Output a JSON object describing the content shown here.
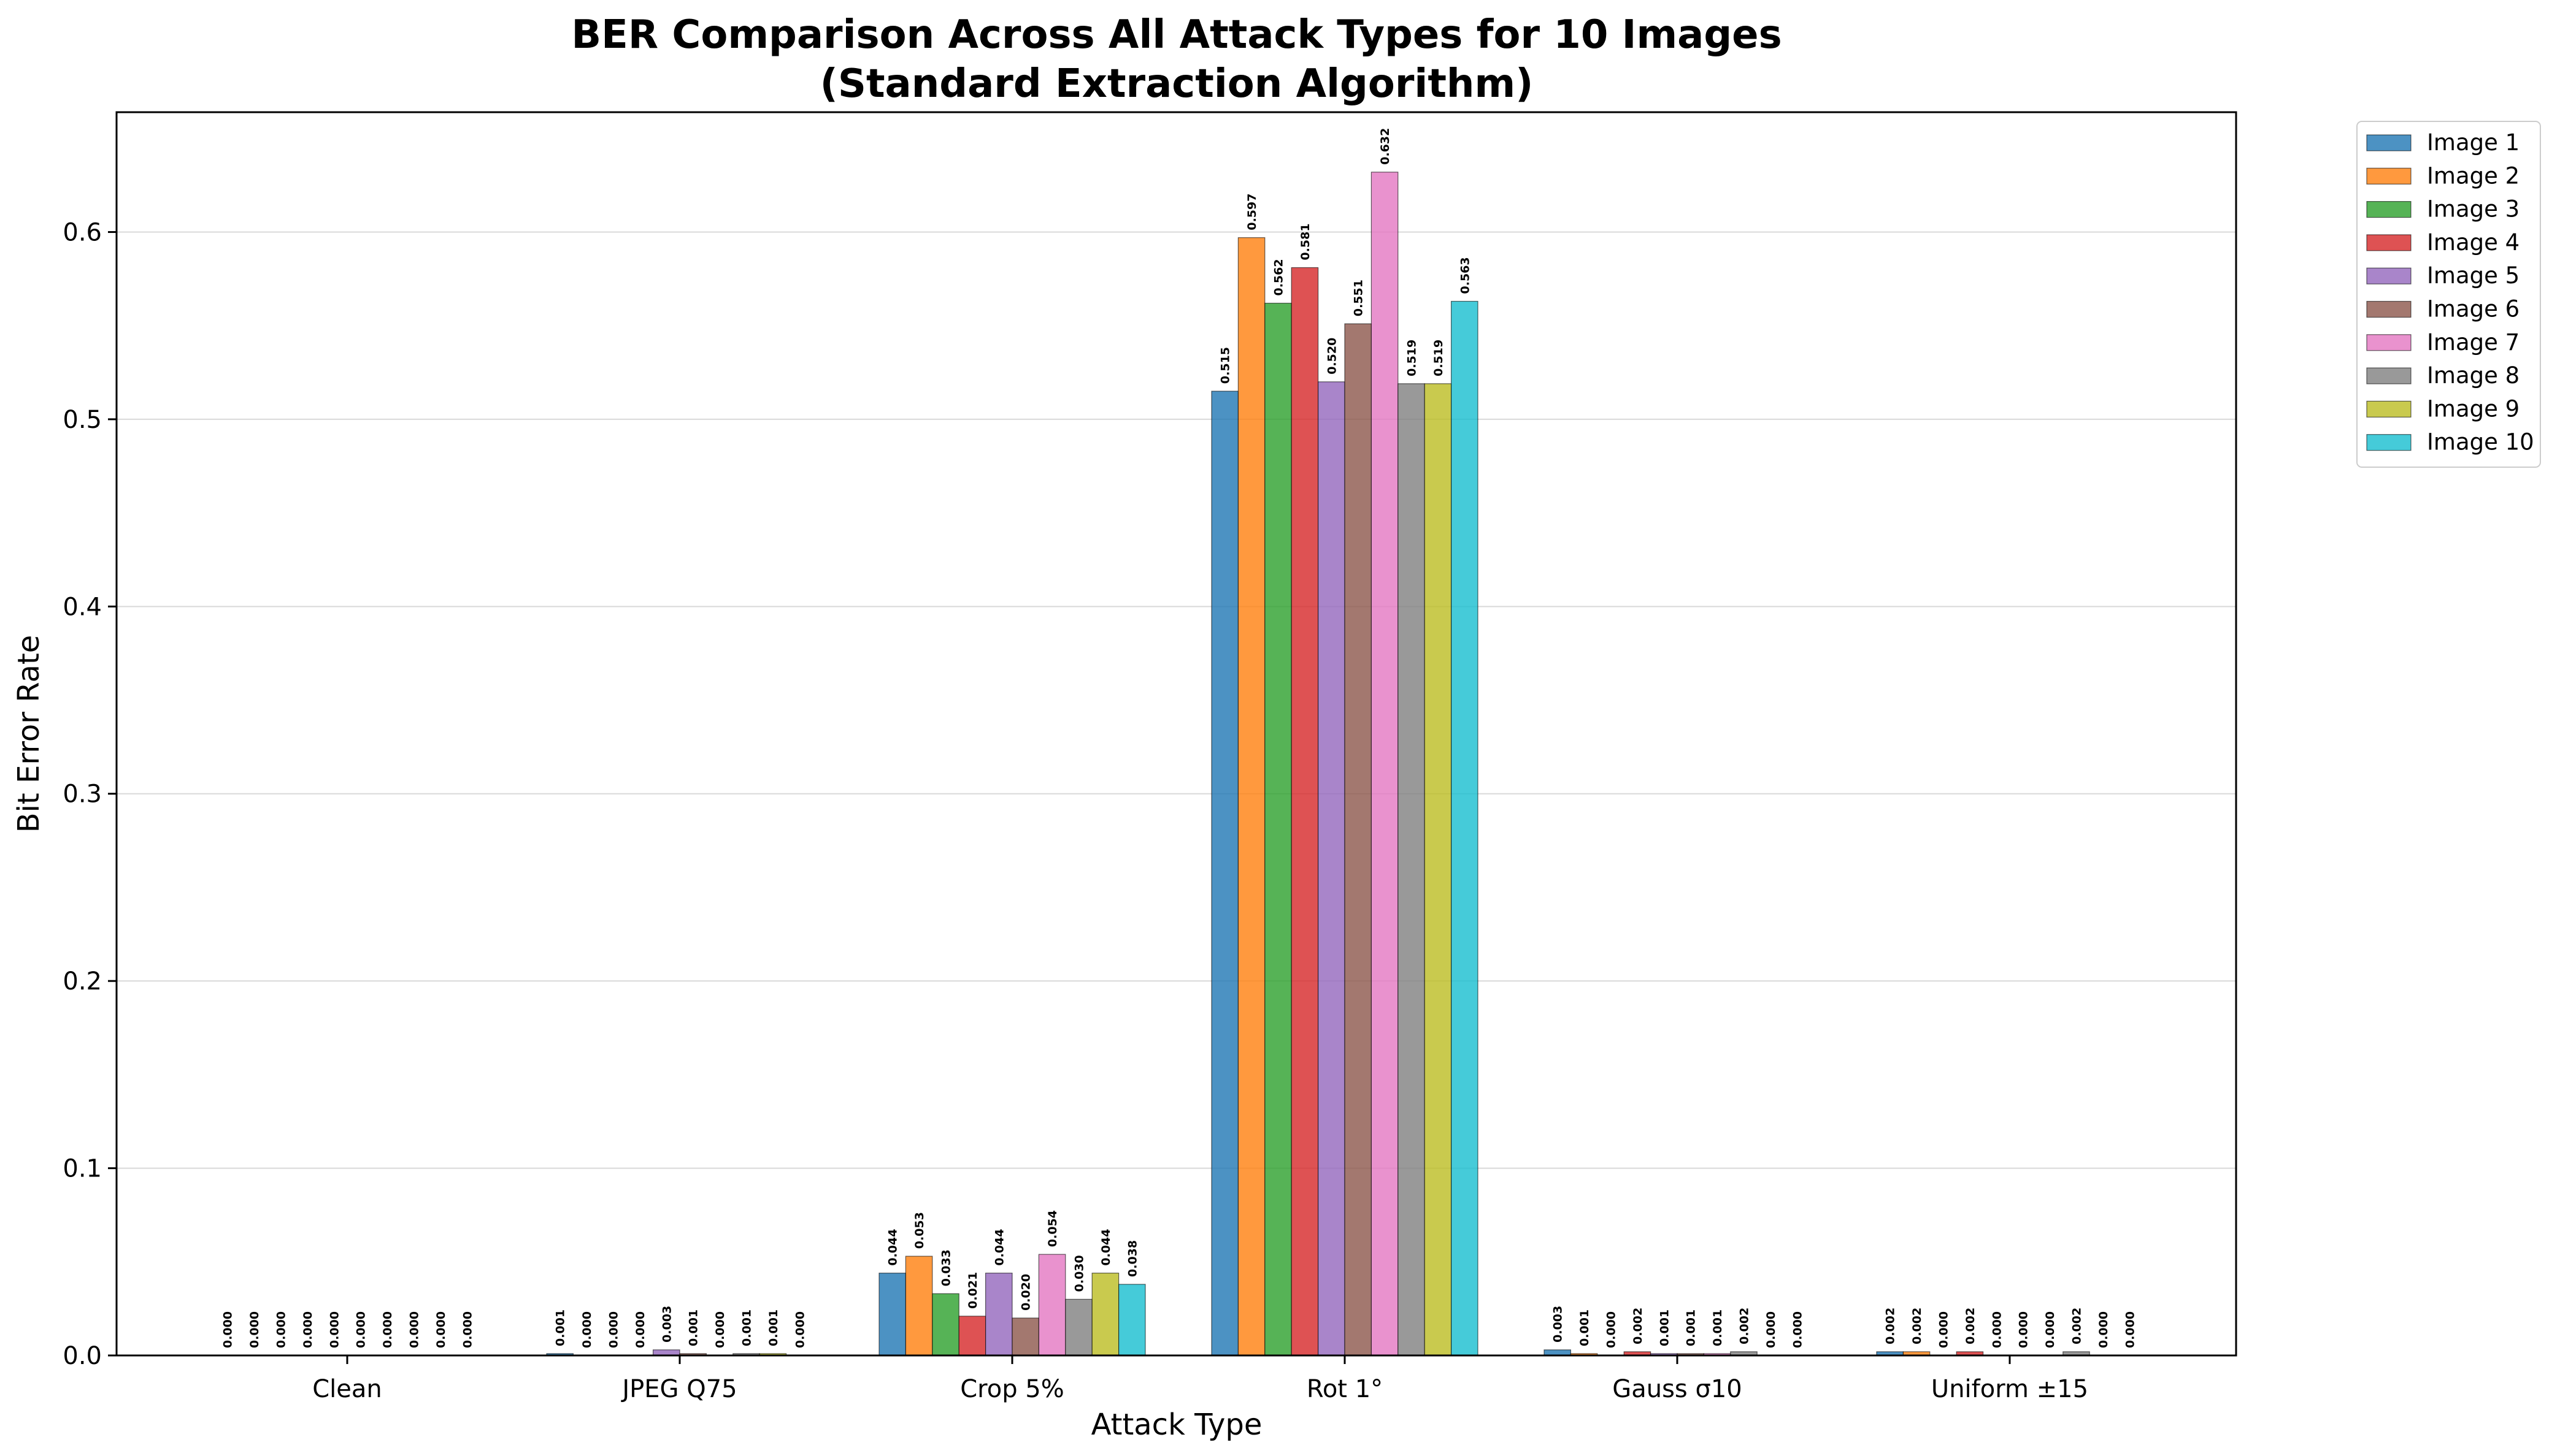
{
  "chart_data": {
    "type": "bar",
    "title_line1": "BER Comparison Across All Attack Types for 10 Images",
    "title_line2": "(Standard Extraction Algorithm)",
    "xlabel": "Attack Type",
    "ylabel": "Bit Error Rate",
    "ylim": [
      0,
      0.664
    ],
    "yticks": [
      "0.0",
      "0.1",
      "0.2",
      "0.3",
      "0.4",
      "0.5",
      "0.6"
    ],
    "grid": "horizontal",
    "legend_position": "outside-top-right",
    "categories": [
      "Clean",
      "JPEG Q75",
      "Crop 5%",
      "Rot 1°",
      "Gauss σ10",
      "Uniform ±15"
    ],
    "series": [
      {
        "name": "Image 1",
        "color": "#1f77b4",
        "values": [
          0.0,
          0.001,
          0.044,
          0.515,
          0.003,
          0.002
        ],
        "labels": [
          "0.000",
          "0.001",
          "0.044",
          "0.515",
          "0.003",
          "0.002"
        ]
      },
      {
        "name": "Image 2",
        "color": "#ff7f0e",
        "values": [
          0.0,
          0.0,
          0.053,
          0.597,
          0.001,
          0.002
        ],
        "labels": [
          "0.000",
          "0.000",
          "0.053",
          "0.597",
          "0.001",
          "0.002"
        ]
      },
      {
        "name": "Image 3",
        "color": "#2ca02c",
        "values": [
          0.0,
          0.0,
          0.033,
          0.562,
          0.0,
          0.0
        ],
        "labels": [
          "0.000",
          "0.000",
          "0.033",
          "0.562",
          "0.000",
          "0.000"
        ]
      },
      {
        "name": "Image 4",
        "color": "#d62728",
        "values": [
          0.0,
          0.0,
          0.021,
          0.581,
          0.002,
          0.002
        ],
        "labels": [
          "0.000",
          "0.000",
          "0.021",
          "0.581",
          "0.002",
          "0.002"
        ]
      },
      {
        "name": "Image 5",
        "color": "#9467bd",
        "values": [
          0.0,
          0.003,
          0.044,
          0.52,
          0.001,
          0.0
        ],
        "labels": [
          "0.000",
          "0.003",
          "0.044",
          "0.520",
          "0.001",
          "0.000"
        ]
      },
      {
        "name": "Image 6",
        "color": "#8c564b",
        "values": [
          0.0,
          0.001,
          0.02,
          0.551,
          0.001,
          0.0
        ],
        "labels": [
          "0.000",
          "0.001",
          "0.020",
          "0.551",
          "0.001",
          "0.000"
        ]
      },
      {
        "name": "Image 7",
        "color": "#e377c2",
        "values": [
          0.0,
          0.0,
          0.054,
          0.632,
          0.001,
          0.0
        ],
        "labels": [
          "0.000",
          "0.000",
          "0.054",
          "0.632",
          "0.001",
          "0.000"
        ]
      },
      {
        "name": "Image 8",
        "color": "#7f7f7f",
        "values": [
          0.0,
          0.001,
          0.03,
          0.519,
          0.002,
          0.002
        ],
        "labels": [
          "0.000",
          "0.001",
          "0.030",
          "0.519",
          "0.002",
          "0.002"
        ]
      },
      {
        "name": "Image 9",
        "color": "#bcbd22",
        "values": [
          0.0,
          0.001,
          0.044,
          0.519,
          0.0,
          0.0
        ],
        "labels": [
          "0.000",
          "0.001",
          "0.044",
          "0.519",
          "0.000",
          "0.000"
        ]
      },
      {
        "name": "Image 10",
        "color": "#17becf",
        "values": [
          0.0,
          0.0,
          0.038,
          0.563,
          0.0,
          0.0
        ],
        "labels": [
          "0.000",
          "0.000",
          "0.038",
          "0.563",
          "0.000",
          "0.000"
        ]
      }
    ]
  }
}
